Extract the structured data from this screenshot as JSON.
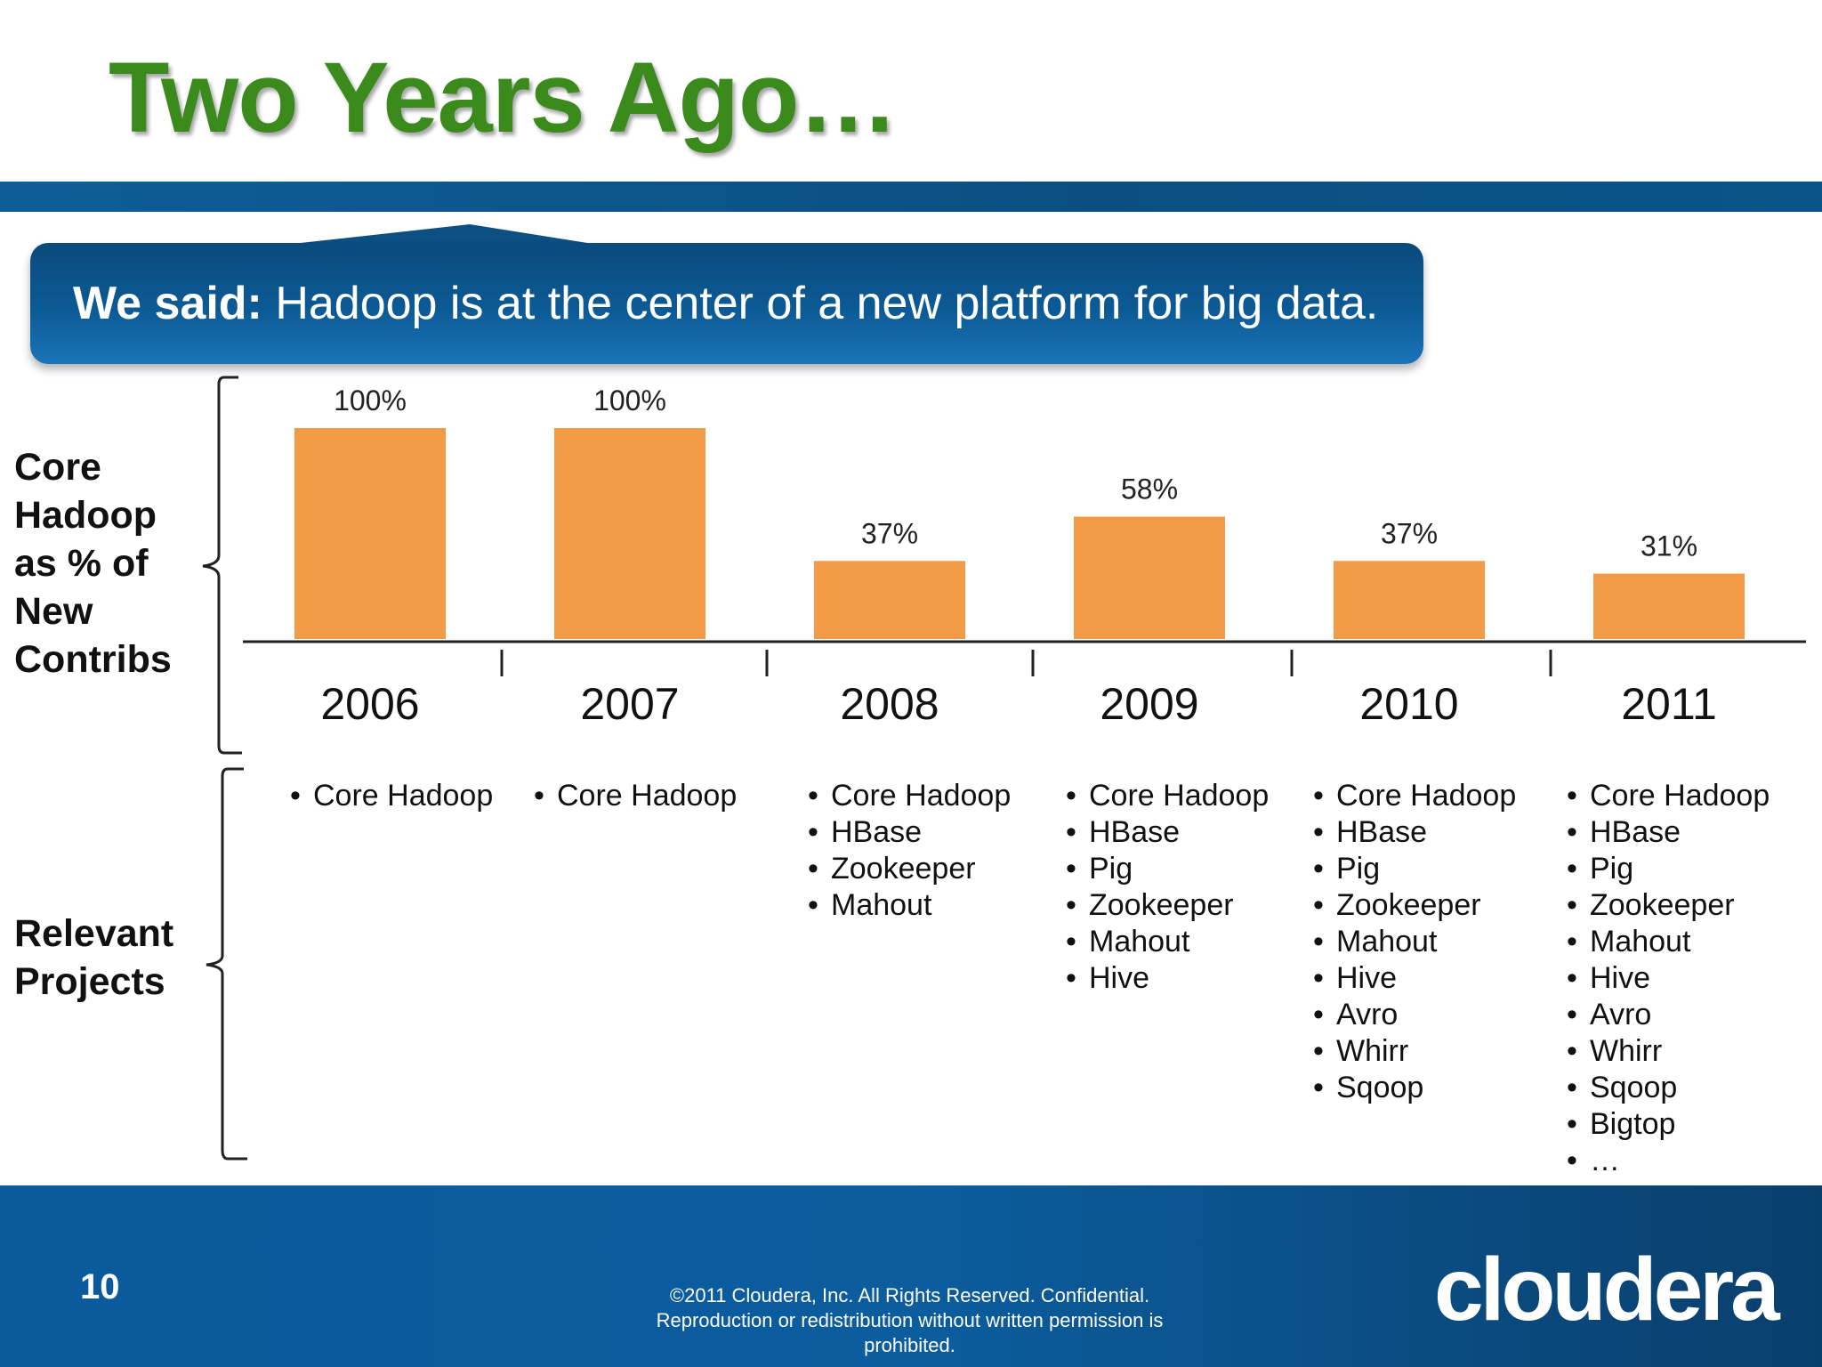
{
  "title": "Two Years Ago…",
  "callout": {
    "bold": "We said:",
    "text": " Hadoop is at the center of a new platform for big data."
  },
  "side_labels": {
    "chart": "Core\nHadoop\nas % of\nNew\nContribs",
    "projects": "Relevant\nProjects"
  },
  "chart_data": {
    "type": "bar",
    "categories": [
      "2006",
      "2007",
      "2008",
      "2009",
      "2010",
      "2011"
    ],
    "values": [
      100,
      100,
      37,
      58,
      37,
      31
    ],
    "data_labels": [
      "100%",
      "100%",
      "37%",
      "58%",
      "37%",
      "31%"
    ],
    "ylim": [
      0,
      100
    ],
    "bar_color": "#f29a45",
    "grid": false
  },
  "projects": [
    {
      "year": "2006",
      "items": [
        "Core Hadoop"
      ]
    },
    {
      "year": "2007",
      "items": [
        "Core Hadoop"
      ]
    },
    {
      "year": "2008",
      "items": [
        "Core Hadoop",
        "HBase",
        "Zookeeper",
        "Mahout"
      ]
    },
    {
      "year": "2009",
      "items": [
        "Core Hadoop",
        "HBase",
        "Pig",
        "Zookeeper",
        "Mahout",
        "Hive"
      ]
    },
    {
      "year": "2010",
      "items": [
        "Core Hadoop",
        "HBase",
        "Pig",
        "Zookeeper",
        "Mahout",
        "Hive",
        "Avro",
        "Whirr",
        "Sqoop"
      ]
    },
    {
      "year": "2011",
      "items": [
        "Core Hadoop",
        "HBase",
        "Pig",
        "Zookeeper",
        "Mahout",
        "Hive",
        "Avro",
        "Whirr",
        "Sqoop",
        "Bigtop",
        "…"
      ]
    }
  ],
  "bullet": "•",
  "footer": {
    "page_number": "10",
    "copyright": "©2011 Cloudera, Inc. All Rights Reserved. Confidential. Reproduction or redistribution without written permission is prohibited.",
    "logo": "cloudera"
  },
  "colors": {
    "title": "#3a8a1c",
    "accent_blue": "#0c5a95",
    "bar": "#f29a45"
  }
}
